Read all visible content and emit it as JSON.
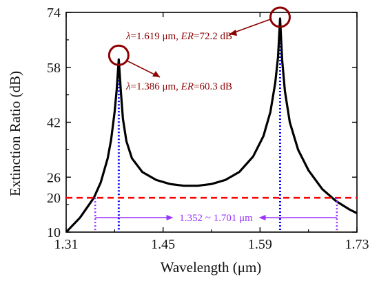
{
  "chart_data": {
    "type": "line",
    "xlabel": "Wavelength (μm)",
    "ylabel": "Extinction Ratio (dB)",
    "xlim": [
      1.31,
      1.73
    ],
    "ylim": [
      10,
      74
    ],
    "xticks": [
      "1.31",
      "1.45",
      "1.59",
      "1.73"
    ],
    "xtick_values": [
      1.31,
      1.45,
      1.59,
      1.73
    ],
    "yticks": [
      "10",
      "26",
      "42",
      "58",
      "74"
    ],
    "ytick_values": [
      10,
      26,
      42,
      58,
      74
    ],
    "grid": false,
    "series": [
      {
        "color": "#000000",
        "x": [
          1.31,
          1.33,
          1.35,
          1.36,
          1.37,
          1.375,
          1.38,
          1.383,
          1.386,
          1.389,
          1.392,
          1.397,
          1.405,
          1.42,
          1.44,
          1.46,
          1.48,
          1.5,
          1.52,
          1.54,
          1.56,
          1.58,
          1.595,
          1.605,
          1.612,
          1.616,
          1.619,
          1.622,
          1.626,
          1.633,
          1.645,
          1.66,
          1.68,
          1.7,
          1.72,
          1.73
        ],
        "y": [
          10.0,
          14.2,
          20.0,
          24.5,
          31.5,
          37.0,
          45.0,
          51.5,
          60.3,
          51.0,
          43.0,
          36.5,
          31.5,
          27.5,
          25.2,
          24.0,
          23.5,
          23.5,
          24.0,
          25.2,
          27.5,
          32.0,
          38.0,
          45.0,
          53.5,
          61.0,
          72.2,
          60.0,
          51.0,
          42.0,
          34.0,
          28.0,
          22.5,
          19.0,
          16.5,
          15.5
        ]
      }
    ],
    "threshold": {
      "y": 20,
      "label": "20",
      "color": "#ff0000",
      "style": "dashed"
    },
    "peaks": [
      {
        "x": 1.386,
        "y": 60.3,
        "color": "#0000ff",
        "style": "dotted"
      },
      {
        "x": 1.619,
        "y": 72.2,
        "color": "#0000ff",
        "style": "dotted"
      }
    ],
    "bandwidth": {
      "x_start": 1.352,
      "x_end": 1.701,
      "label": "1.352 ~ 1.701 μm",
      "color": "#9933ff"
    },
    "annotations": [
      {
        "symbol": "λ",
        "value_text": "=1.619 μm, ",
        "metric": "ER",
        "metric_text": "=72.2 dB",
        "color": "#8b0000"
      },
      {
        "symbol": "λ",
        "value_text": "=1.386 μm, ",
        "metric": "ER",
        "metric_text": "=60.3 dB",
        "color": "#8b0000"
      }
    ]
  }
}
